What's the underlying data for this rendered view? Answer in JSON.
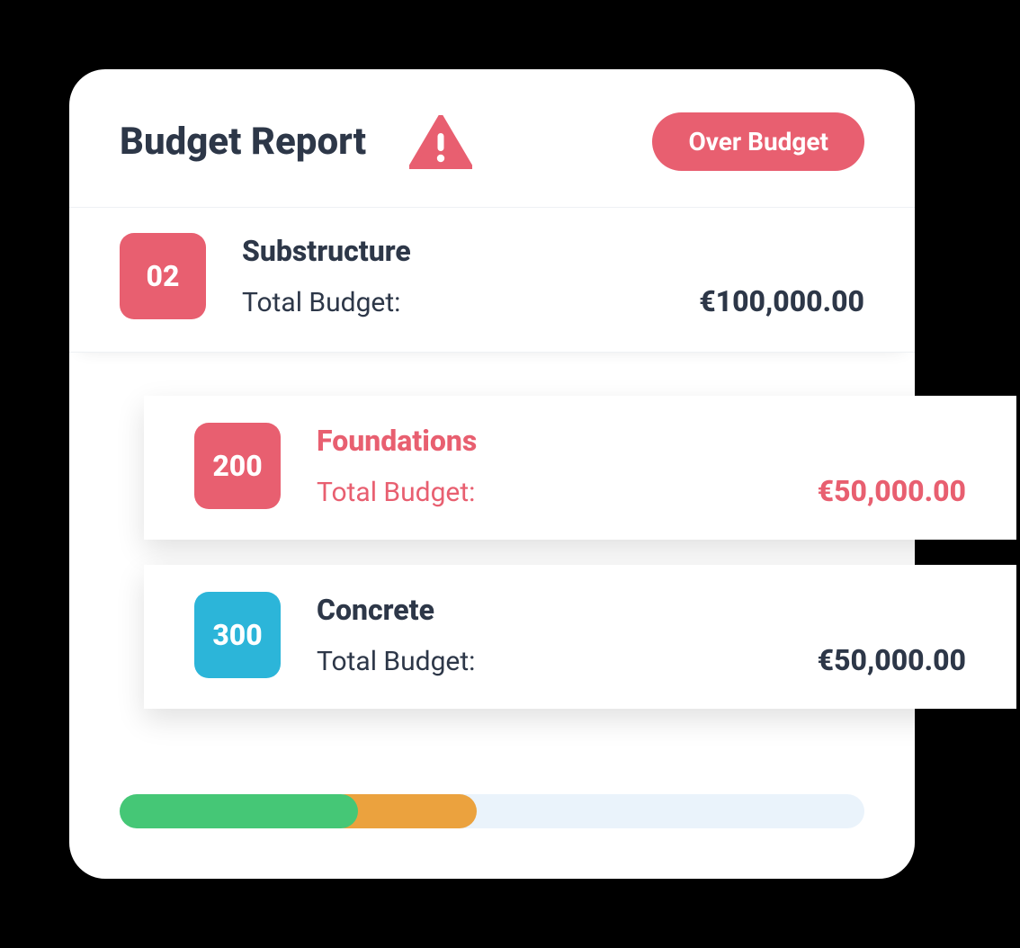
{
  "colors": {
    "background": "#000000",
    "card_bg": "#ffffff",
    "text_dark": "#2d3748",
    "accent_red": "#e85f70",
    "accent_blue": "#2cb5d9",
    "progress_track": "#eaf3fb",
    "progress_green": "#45c776",
    "progress_orange": "#eba23e",
    "divider": "#eef1f4"
  },
  "header": {
    "title": "Budget Report",
    "badge_label": "Over Budget",
    "warning_icon_color": "#e85f70"
  },
  "main_row": {
    "badge_number": "02",
    "badge_color": "#e85f70",
    "title": "Substructure",
    "label": "Total Budget:",
    "amount": "€100,000.00",
    "text_color": "#2d3748"
  },
  "sub_rows": [
    {
      "badge_number": "200",
      "badge_color": "#e85f70",
      "title": "Foundations",
      "label": "Total Budget:",
      "amount": "€50,000.00",
      "text_color": "#e85f70"
    },
    {
      "badge_number": "300",
      "badge_color": "#2cb5d9",
      "title": "Concrete",
      "label": "Total Budget:",
      "amount": "€50,000.00",
      "text_color": "#2d3748"
    }
  ],
  "progress": {
    "track_color": "#eaf3fb",
    "segments": [
      {
        "color": "#45c776",
        "start_pct": 0,
        "width_pct": 32
      },
      {
        "color": "#eba23e",
        "start_pct": 28,
        "width_pct": 20
      }
    ]
  }
}
